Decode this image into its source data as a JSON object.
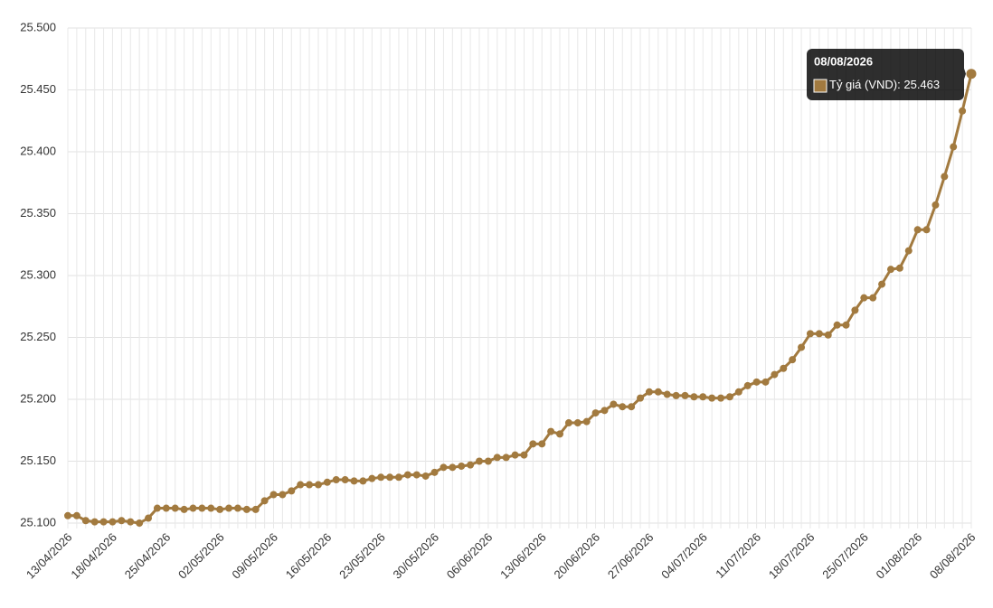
{
  "chart_data": {
    "type": "line",
    "categories": [
      "13/04/2026",
      null,
      null,
      null,
      null,
      "18/04/2026",
      null,
      null,
      null,
      null,
      null,
      "25/04/2026",
      null,
      null,
      null,
      null,
      null,
      "02/05/2026",
      null,
      null,
      null,
      null,
      null,
      "09/05/2026",
      null,
      null,
      null,
      null,
      null,
      "16/05/2026",
      null,
      null,
      null,
      null,
      null,
      "23/05/2026",
      null,
      null,
      null,
      null,
      null,
      "30/05/2026",
      null,
      null,
      null,
      null,
      null,
      "06/06/2026",
      null,
      null,
      null,
      null,
      null,
      "13/06/2026",
      null,
      null,
      null,
      null,
      null,
      "20/06/2026",
      null,
      null,
      null,
      null,
      null,
      "27/06/2026",
      null,
      null,
      null,
      null,
      null,
      "04/07/2026",
      null,
      null,
      null,
      null,
      null,
      "11/07/2026",
      null,
      null,
      null,
      null,
      null,
      "18/07/2026",
      null,
      null,
      null,
      null,
      null,
      "25/07/2026",
      null,
      null,
      null,
      null,
      null,
      "01/08/2026",
      null,
      null,
      null,
      null,
      null,
      "08/08/2026"
    ],
    "series": [
      {
        "name": "Tỷ giá (VND)",
        "color": "#a27a3f",
        "values": [
          25106,
          25106,
          25102,
          25101,
          25101,
          25101,
          25102,
          25101,
          25100,
          25104,
          25112,
          25112,
          25112,
          25111,
          25112,
          25112,
          25112,
          25111,
          25112,
          25112,
          25111,
          25111,
          25118,
          25123,
          25123,
          25126,
          25131,
          25131,
          25131,
          25133,
          25135,
          25135,
          25134,
          25134,
          25136,
          25137,
          25137,
          25137,
          25139,
          25139,
          25138,
          25141,
          25145,
          25145,
          25146,
          25147,
          25150,
          25150,
          25153,
          25153,
          25155,
          25155,
          25164,
          25164,
          25174,
          25172,
          25181,
          25181,
          25182,
          25189,
          25191,
          25196,
          25194,
          25194,
          25201,
          25206,
          25206,
          25204,
          25203,
          25203,
          25202,
          25202,
          25201,
          25201,
          25202,
          25206,
          25211,
          25214,
          25214,
          25220,
          25225,
          25232,
          25242,
          25253,
          25253,
          25252,
          25260,
          25260,
          25272,
          25282,
          25282,
          25293,
          25305,
          25306,
          25320,
          25337,
          25337,
          25357,
          25380,
          25404,
          25433,
          25463
        ],
        "value_labels": [
          null,
          null,
          null,
          null,
          null,
          null,
          null,
          null,
          null,
          null,
          null,
          null,
          null,
          null,
          null,
          null,
          null,
          null,
          null,
          null,
          null,
          null,
          null,
          null,
          null,
          null,
          null,
          null,
          null,
          null,
          null,
          null,
          null,
          null,
          null,
          null,
          null,
          null,
          null,
          null,
          null,
          null,
          null,
          null,
          null,
          null,
          null,
          null,
          null,
          null,
          null,
          null,
          null,
          null,
          null,
          null,
          null,
          null,
          null,
          null,
          null,
          null,
          null,
          null,
          null,
          null,
          null,
          null,
          null,
          null,
          null,
          null,
          null,
          null,
          null,
          null,
          null,
          null,
          null,
          null,
          null,
          null,
          null,
          null,
          null,
          null,
          null,
          null,
          null,
          null,
          null,
          null,
          null,
          null,
          null,
          null,
          null,
          null,
          null,
          null,
          null,
          "25.463"
        ]
      }
    ],
    "ylim": [
      25100,
      25500
    ],
    "yticks": [
      {
        "value": 25100,
        "label": "25.100"
      },
      {
        "value": 25150,
        "label": "25.150"
      },
      {
        "value": 25200,
        "label": "25.200"
      },
      {
        "value": 25250,
        "label": "25.250"
      },
      {
        "value": 25300,
        "label": "25.300"
      },
      {
        "value": 25350,
        "label": "25.350"
      },
      {
        "value": 25400,
        "label": "25.400"
      },
      {
        "value": 25450,
        "label": "25.450"
      },
      {
        "value": 25500,
        "label": "25.500"
      }
    ],
    "grid": true
  }
}
